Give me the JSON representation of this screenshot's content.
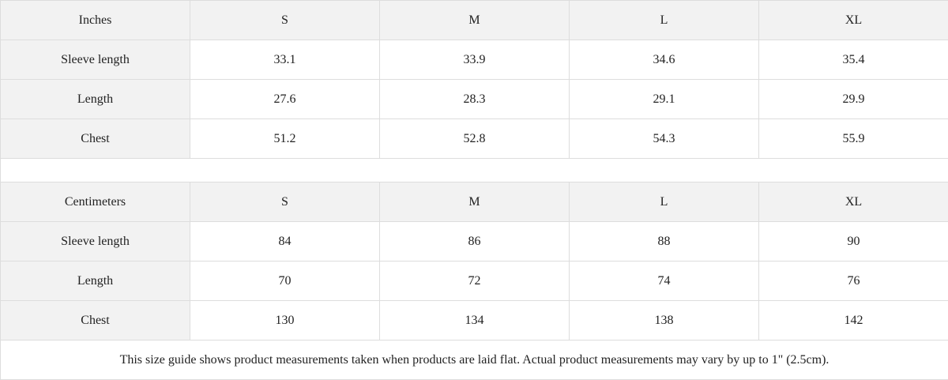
{
  "tables": [
    {
      "header": [
        "Inches",
        "S",
        "M",
        "L",
        "XL"
      ],
      "rows": [
        {
          "label": "Sleeve length",
          "values": [
            "33.1",
            "33.9",
            "34.6",
            "35.4"
          ]
        },
        {
          "label": "Length",
          "values": [
            "27.6",
            "28.3",
            "29.1",
            "29.9"
          ]
        },
        {
          "label": "Chest",
          "values": [
            "51.2",
            "52.8",
            "54.3",
            "55.9"
          ]
        }
      ]
    },
    {
      "header": [
        "Centimeters",
        "S",
        "M",
        "L",
        "XL"
      ],
      "rows": [
        {
          "label": "Sleeve length",
          "values": [
            "84",
            "86",
            "88",
            "90"
          ]
        },
        {
          "label": "Length",
          "values": [
            "70",
            "72",
            "74",
            "76"
          ]
        },
        {
          "label": "Chest",
          "values": [
            "130",
            "134",
            "138",
            "142"
          ]
        }
      ]
    }
  ],
  "footnote": "This size guide shows product measurements taken when products are laid flat.  Actual product measurements may vary by up to 1\" (2.5cm).",
  "colors": {
    "header_bg": "#f2f2f2",
    "border": "#dddddd"
  }
}
